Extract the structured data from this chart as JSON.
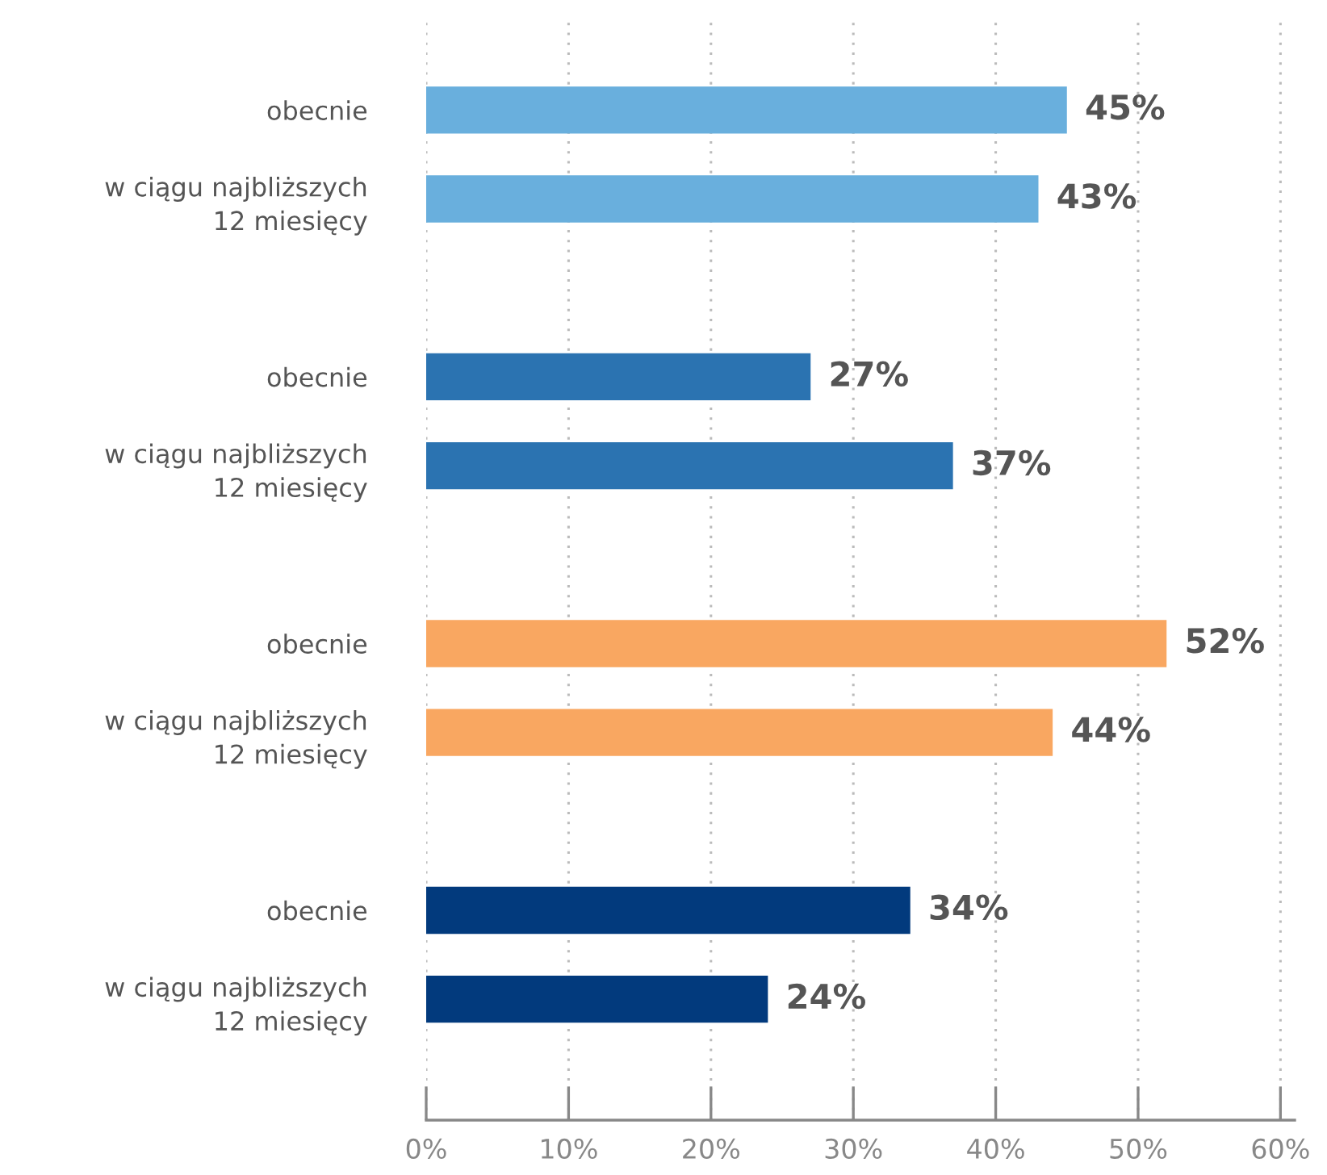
{
  "chart_data": {
    "type": "bar",
    "orientation": "horizontal",
    "categories": [
      "obecnie",
      "w ciągu najbliższych\n12 miesięcy",
      null,
      "obecnie",
      "w ciągu najbliższych\n12 miesięcy",
      null,
      "obecnie",
      "w ciągu najbliższych\n12 miesięcy",
      null,
      "obecnie",
      "w ciągu najbliższych\n12 miesięcy"
    ],
    "values": [
      45,
      43,
      null,
      27,
      37,
      null,
      52,
      44,
      null,
      34,
      24
    ],
    "colors": [
      "#69afdd",
      "#69afdd",
      null,
      "#2b73b1",
      "#2b73b1",
      null,
      "#f9a761",
      "#f9a761",
      null,
      "#023a7d",
      "#023a7d"
    ],
    "value_labels": [
      "45%",
      "43%",
      null,
      "27%",
      "37%",
      null,
      "52%",
      "44%",
      null,
      "34%",
      "24%"
    ],
    "xlim": [
      0,
      61
    ],
    "xticks": [
      {
        "value": 0,
        "label": "0%"
      },
      {
        "value": 10,
        "label": "10%"
      },
      {
        "value": 20,
        "label": "20%"
      },
      {
        "value": 30,
        "label": "30%"
      },
      {
        "value": 40,
        "label": "40%"
      },
      {
        "value": 50,
        "label": "50%"
      },
      {
        "value": 60,
        "label": "60%"
      }
    ],
    "grid": "x"
  }
}
